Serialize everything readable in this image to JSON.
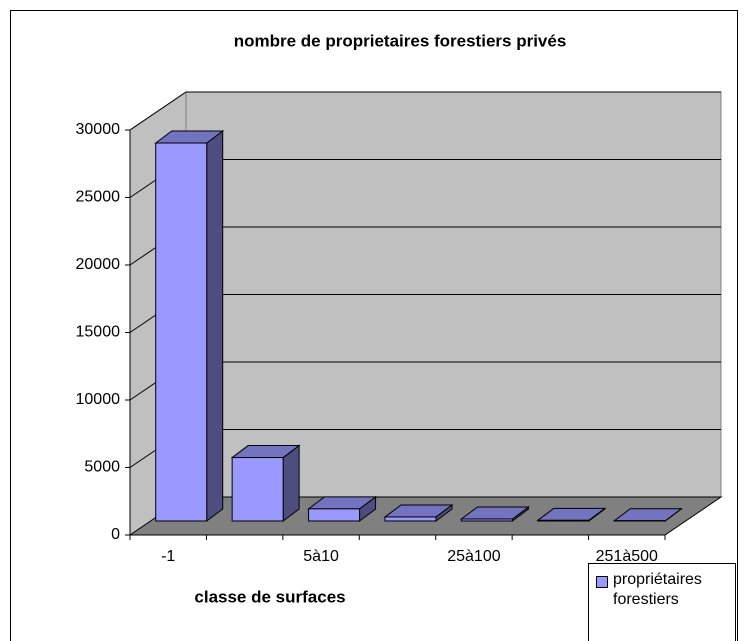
{
  "chart_data": {
    "type": "bar3d",
    "title": "nombre de proprietaires forestiers privés",
    "x_label": "classe de surfaces",
    "categories": [
      "-1",
      null,
      "5à10",
      null,
      "25à100",
      null,
      "251à500"
    ],
    "series": [
      {
        "name": "propriétaires forestiers",
        "color": "#9999ff",
        "values": [
          28000,
          4700,
          900,
          300,
          150,
          50,
          20
        ]
      }
    ],
    "ylim": [
      0,
      30000
    ],
    "yticks": [
      0,
      5000,
      10000,
      15000,
      20000,
      25000,
      30000
    ],
    "grid": true,
    "legend": "bottom-right"
  }
}
